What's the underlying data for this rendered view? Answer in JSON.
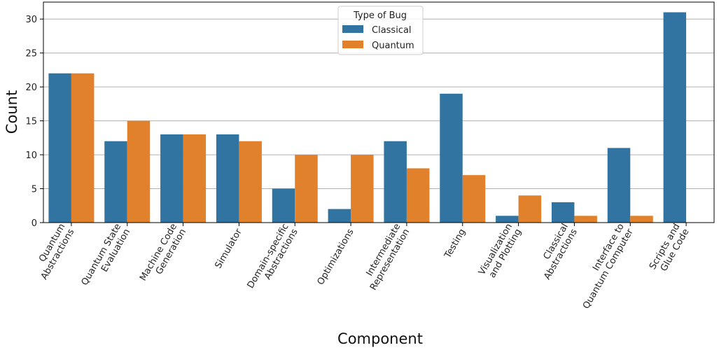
{
  "chart_data": {
    "type": "bar",
    "title": "",
    "xlabel": "Component",
    "ylabel": "Count",
    "ylim": [
      0,
      32.5
    ],
    "yticks": [
      0,
      5,
      10,
      15,
      20,
      25,
      30
    ],
    "grid": "horizontal",
    "legend": {
      "title": "Type of Bug",
      "placement": "top-center"
    },
    "categories": [
      [
        "Quantum",
        "Abstractions"
      ],
      [
        "Quantum State",
        "Evaluation"
      ],
      [
        "Machine Code",
        "Generation"
      ],
      [
        "Simulator"
      ],
      [
        "Domain-specific",
        "Abstractions"
      ],
      [
        "Optimizations"
      ],
      [
        "Intermediate",
        "Representation"
      ],
      [
        "Testing"
      ],
      [
        "Visualization",
        "and Plotting"
      ],
      [
        "Classical",
        "Abstractions"
      ],
      [
        "Interface to",
        "Quantum Computer"
      ],
      [
        "Scripts and",
        "Glue Code"
      ]
    ],
    "series": [
      {
        "name": "Classical",
        "color": "#3274a1",
        "values": [
          22,
          12,
          13,
          13,
          5,
          2,
          12,
          19,
          1,
          3,
          11,
          31
        ]
      },
      {
        "name": "Quantum",
        "color": "#e1812c",
        "values": [
          22,
          15,
          13,
          12,
          10,
          10,
          8,
          7,
          4,
          1,
          1,
          0
        ]
      }
    ]
  }
}
